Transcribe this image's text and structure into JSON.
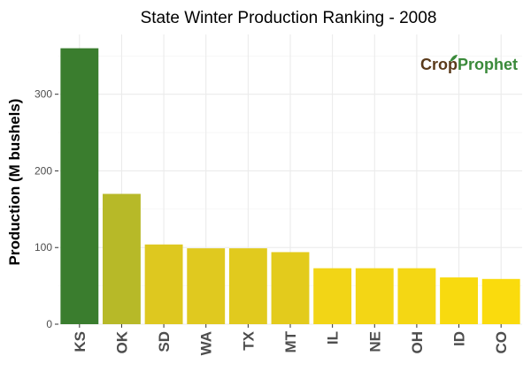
{
  "chart_data": {
    "type": "bar",
    "title": "State Winter  Production Ranking - 2008",
    "xlabel": "",
    "ylabel": "Production (M bushels)",
    "categories": [
      "KS",
      "OK",
      "SD",
      "WA",
      "TX",
      "MT",
      "IL",
      "NE",
      "OH",
      "ID",
      "CO"
    ],
    "values": [
      360,
      170,
      104,
      99,
      99,
      94,
      73,
      73,
      73,
      61,
      59
    ],
    "bar_colors": [
      "#3a7d2e",
      "#b7b928",
      "#dec81f",
      "#e0c91f",
      "#e1ca1e",
      "#e3cb1c",
      "#f2d516",
      "#f3d615",
      "#f4d714",
      "#f8da0f",
      "#fadb0d"
    ],
    "ylim": [
      0,
      378
    ],
    "yticks": [
      0,
      100,
      200,
      300
    ],
    "grid": true,
    "legend": "none"
  },
  "logo": {
    "text": "CropProphet"
  }
}
